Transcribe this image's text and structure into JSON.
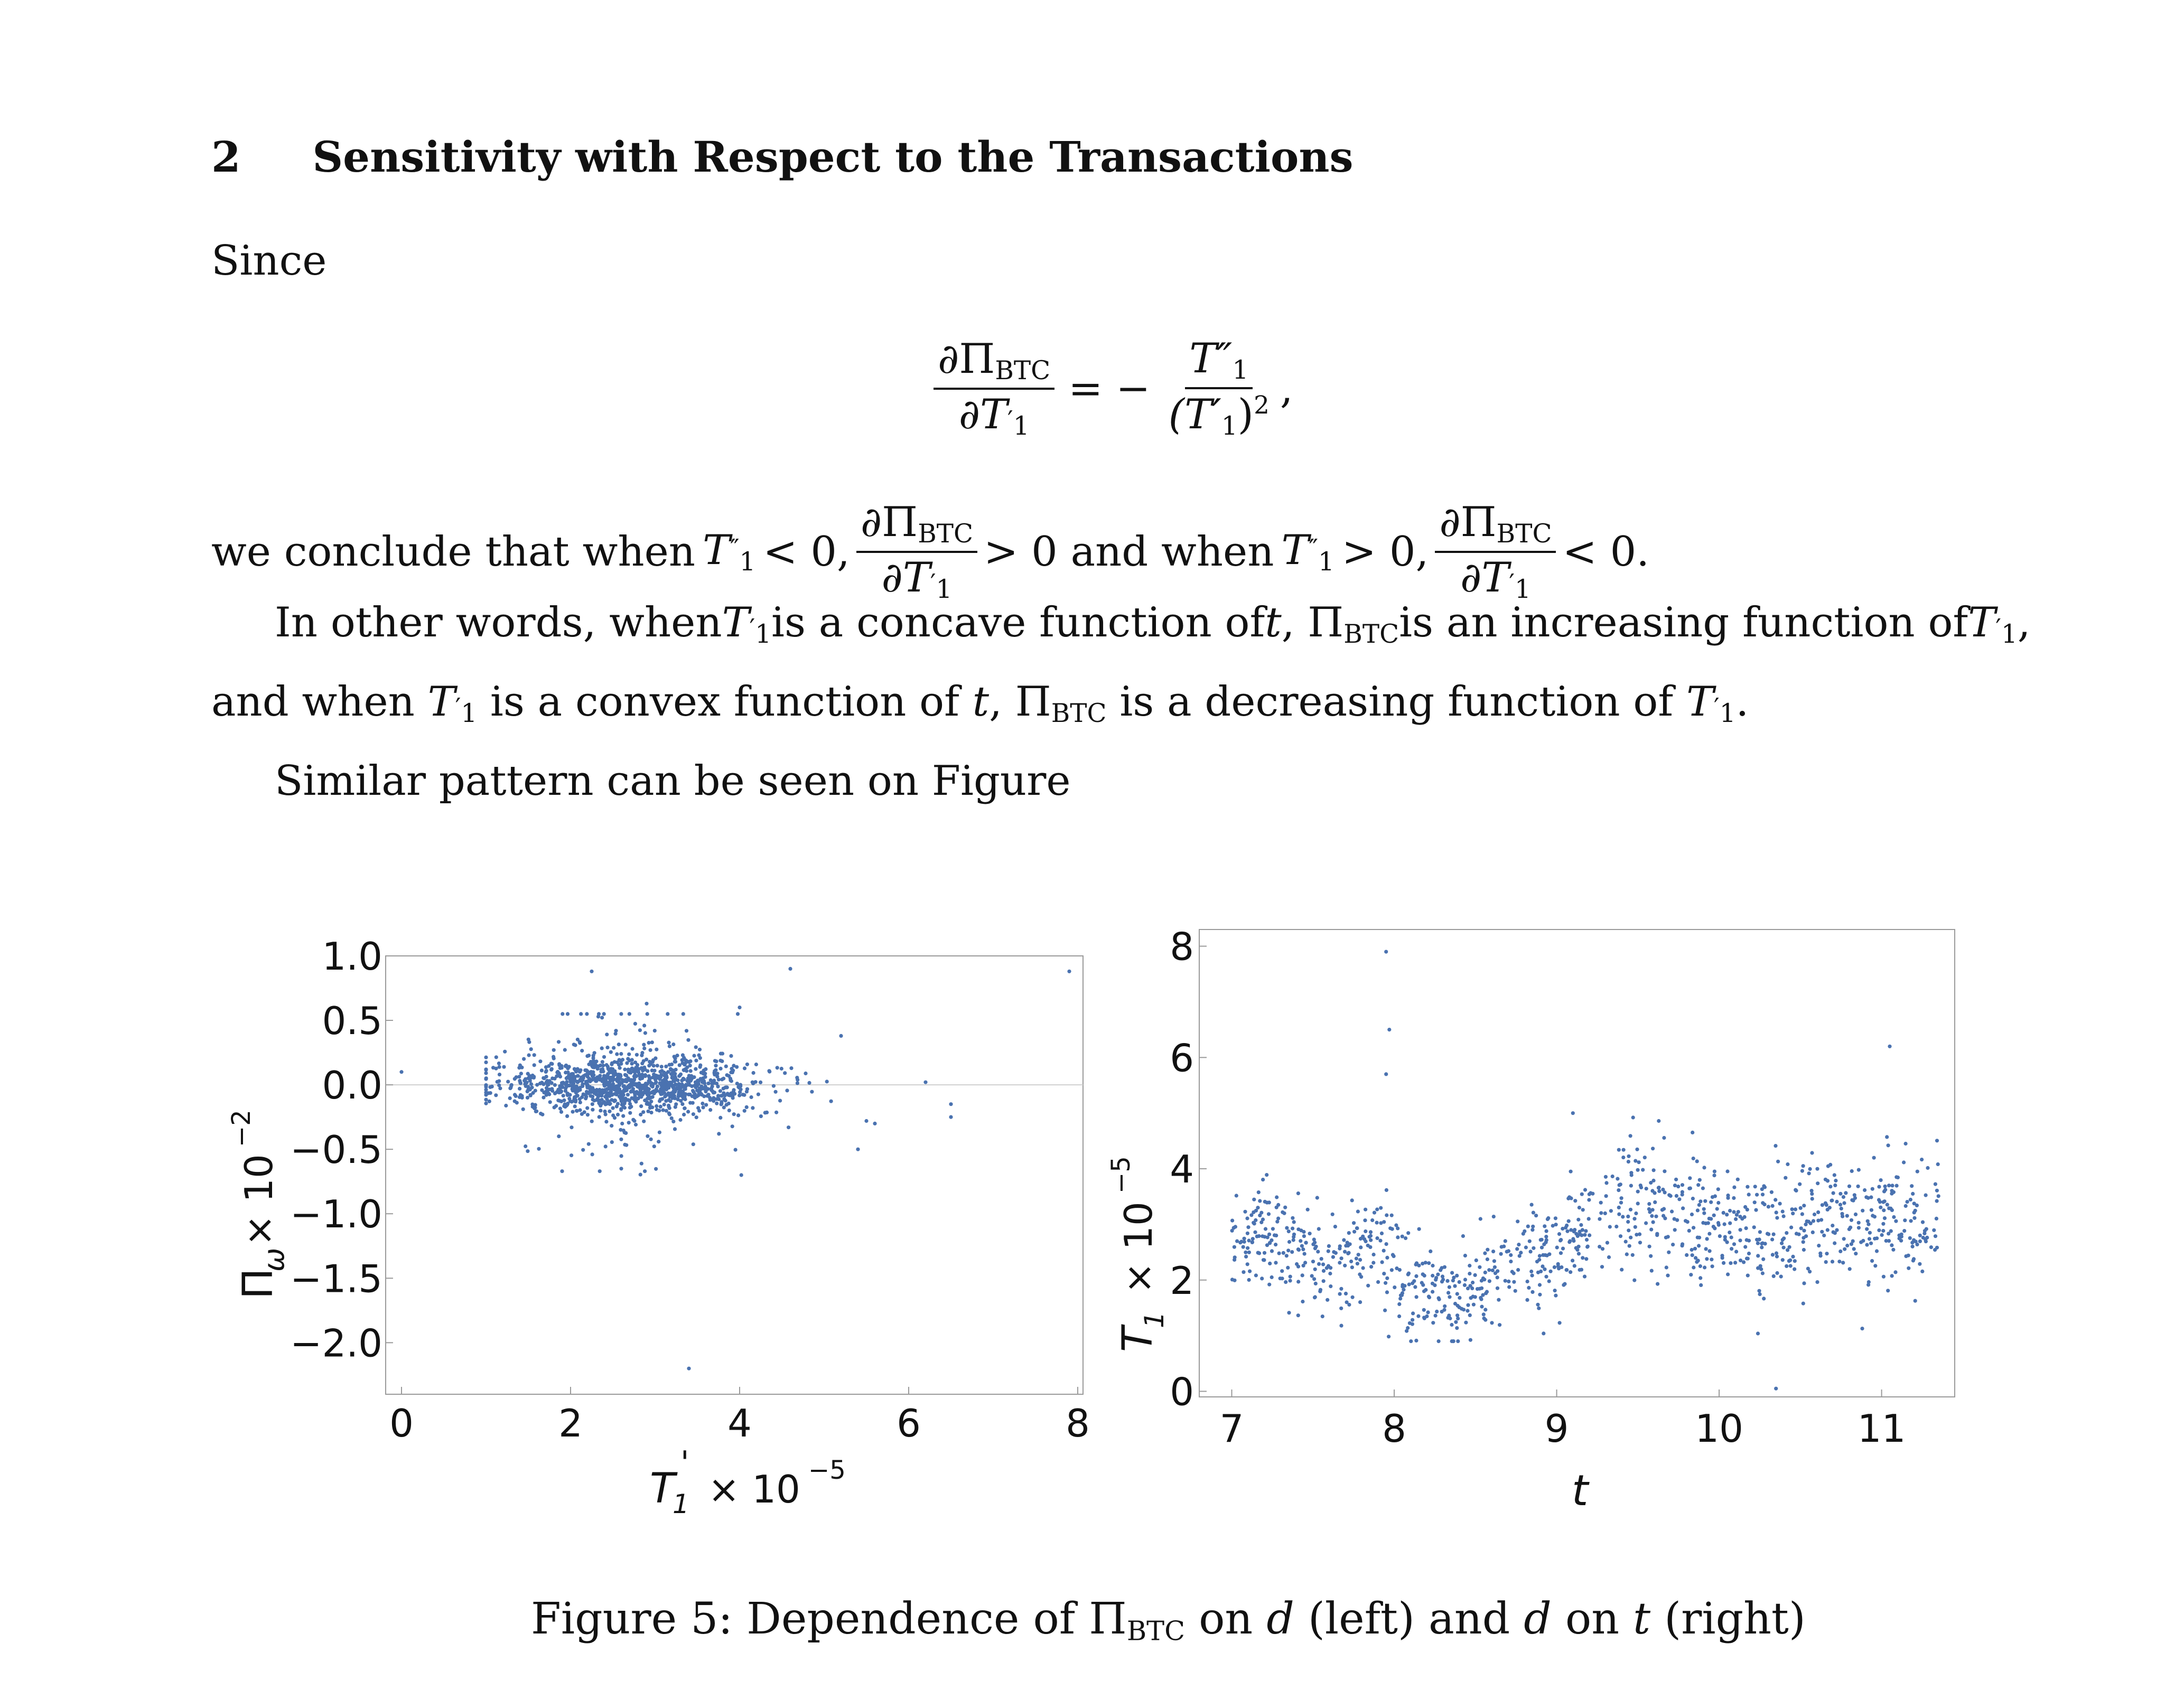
{
  "section": {
    "number": "2",
    "title": "Sensitivity with Respect to the Transactions"
  },
  "text": {
    "since": "Since",
    "eq_lhs_num": "∂Π",
    "eq_lhs_sub": "BTC",
    "eq_lhs_den": "∂T",
    "eq_sign": "= −",
    "eq_rhs_num": "T″",
    "eq_rhs_den": "(T′",
    "eq_tail": ",",
    "conclude_prefix": "we conclude that when",
    "conclude_cond1": "< 0,",
    "conclude_mid": "> 0 and when",
    "conclude_cond2": "> 0,",
    "conclude_end": "< 0.",
    "para1_a": "In other words, when",
    "para1_b": "is a concave function of",
    "para1_c": "is an increasing function of",
    "para2_a": "and when",
    "para2_b": "is a convex function of",
    "para2_c": "is a decreasing function of",
    "para3": "Similar pattern can be seen on Figure",
    "caption_a": "Figure 5: Dependence of Π",
    "caption_sub": "BTC",
    "caption_b": "on",
    "caption_d1": "d",
    "caption_c": "(left) and",
    "caption_d2": "d",
    "caption_e": "on",
    "caption_t": "t",
    "caption_f": "(right)"
  },
  "chart_data": [
    {
      "type": "scatter",
      "title": "",
      "xlabel": "T1' × 10^-5",
      "xlabel_main": "T",
      "xlabel_sub": "1",
      "xlabel_prime": "'",
      "xlabel_scale": "× 10",
      "xlabel_exp": "−5",
      "ylabel": "Πω × 10^-2",
      "ylabel_main": "Π",
      "ylabel_sub": "ω",
      "ylabel_scale": "× 10",
      "ylabel_exp": "−2",
      "xlim": [
        0,
        8
      ],
      "ylim": [
        -2.4,
        1.0
      ],
      "xticks": [
        "0",
        "2",
        "4",
        "6",
        "8"
      ],
      "yticks": [
        "1.0",
        "0.5",
        "0.0",
        "−0.5",
        "−1.0",
        "−1.5",
        "−2.0"
      ],
      "ytick_values": [
        1.0,
        0.5,
        0.0,
        -0.5,
        -1.0,
        -1.5,
        -2.0
      ],
      "xtick_values": [
        0,
        2,
        4,
        6,
        8
      ],
      "reference_line_y": 0,
      "point_color": "#4a72b0",
      "cluster": {
        "x_center": 2.7,
        "x_spread": 0.75,
        "y_center": 0.0,
        "y_spread": 0.11,
        "count": 1300
      },
      "outliers": [
        [
          0.0,
          0.1
        ],
        [
          2.25,
          0.88
        ],
        [
          4.6,
          0.9
        ],
        [
          7.9,
          0.88
        ],
        [
          2.9,
          0.63
        ],
        [
          4.0,
          0.6
        ],
        [
          5.2,
          0.38
        ],
        [
          5.5,
          -0.28
        ],
        [
          5.6,
          -0.3
        ],
        [
          5.4,
          -0.5
        ],
        [
          6.2,
          0.02
        ],
        [
          6.5,
          -0.15
        ],
        [
          6.5,
          -0.25
        ],
        [
          3.4,
          -2.2
        ],
        [
          2.6,
          -0.65
        ],
        [
          1.9,
          -0.67
        ]
      ]
    },
    {
      "type": "scatter",
      "title": "",
      "xlabel": "t",
      "ylabel": "T1' × 10^-5",
      "ylabel_main": "T",
      "ylabel_sub": "1",
      "ylabel_prime": "'",
      "ylabel_scale": "× 10",
      "ylabel_exp": "−5",
      "xlim": [
        6.8,
        11.45
      ],
      "ylim": [
        -0.1,
        8.3
      ],
      "xticks": [
        "7",
        "8",
        "9",
        "10",
        "11"
      ],
      "xtick_values": [
        7,
        8,
        9,
        10,
        11
      ],
      "yticks": [
        "0",
        "2",
        "4",
        "6",
        "8"
      ],
      "ytick_values": [
        0,
        2,
        4,
        6,
        8
      ],
      "point_color": "#4a72b0",
      "trend": [
        [
          7.0,
          2.7
        ],
        [
          7.3,
          2.8
        ],
        [
          7.6,
          2.2
        ],
        [
          7.9,
          2.8
        ],
        [
          8.05,
          2.0
        ],
        [
          8.4,
          1.7
        ],
        [
          8.7,
          2.2
        ],
        [
          9.0,
          2.6
        ],
        [
          9.2,
          2.9
        ],
        [
          9.4,
          3.5
        ],
        [
          9.7,
          3.1
        ],
        [
          10.0,
          2.9
        ],
        [
          10.3,
          2.7
        ],
        [
          10.6,
          3.0
        ],
        [
          10.9,
          3.1
        ],
        [
          11.35,
          3.0
        ]
      ],
      "count": 1100,
      "outliers": [
        [
          7.95,
          7.9
        ],
        [
          7.97,
          6.5
        ],
        [
          7.95,
          5.7
        ],
        [
          11.05,
          6.2
        ],
        [
          10.35,
          0.05
        ],
        [
          9.1,
          5.0
        ]
      ]
    }
  ]
}
